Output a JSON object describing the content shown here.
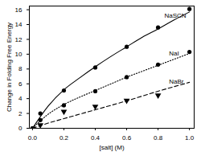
{
  "chart_data": {
    "type": "scatter",
    "xlabel": "[salt] (M)",
    "ylabel": "Change in Folding Free Energy",
    "xlim": [
      -0.02,
      1.03
    ],
    "ylim": [
      0,
      16.5
    ],
    "xticks": [
      {
        "value": 0,
        "label": "0.0"
      },
      0.2,
      0.4,
      0.6,
      0.8,
      {
        "value": 1,
        "label": "1.0"
      }
    ],
    "yticks": [
      0,
      2,
      4,
      6,
      8,
      10,
      12,
      14,
      16
    ],
    "grid": false,
    "series": [
      {
        "name": "NaSCN",
        "color": "#000000",
        "marker": "circle",
        "line_style": "solid",
        "x": [
          0,
          0.05,
          0.2,
          0.4,
          0.6,
          0.8,
          1.0
        ],
        "values": [
          0,
          2.0,
          5.1,
          8.2,
          11.0,
          13.6,
          16.1
        ],
        "fit_x": [
          0,
          0.1,
          0.2,
          0.3,
          0.4,
          0.5,
          0.6,
          0.7,
          0.8,
          0.9,
          1.0
        ],
        "fit_values": [
          0,
          3.0,
          5.2,
          6.8,
          8.3,
          9.7,
          11.0,
          12.3,
          13.4,
          14.6,
          15.7
        ]
      },
      {
        "name": "NaI",
        "color": "#000000",
        "marker": "circle",
        "line_style": "dotted",
        "x": [
          0,
          0.05,
          0.2,
          0.4,
          0.6,
          0.8,
          1.0
        ],
        "values": [
          0,
          1.1,
          3.1,
          5.0,
          6.9,
          8.6,
          10.3
        ],
        "fit_x": [
          0,
          0.1,
          0.2,
          0.3,
          0.4,
          0.5,
          0.6,
          0.7,
          0.8,
          0.9,
          1.0
        ],
        "fit_values": [
          0,
          1.9,
          3.2,
          4.2,
          5.1,
          6.0,
          6.9,
          7.7,
          8.5,
          9.3,
          10.1
        ]
      },
      {
        "name": "NaBr",
        "color": "#000000",
        "marker": "triangle-down",
        "line_style": "dashed",
        "x": [
          0.05,
          0.2,
          0.4,
          0.6,
          0.8
        ],
        "values": [
          0.4,
          2.2,
          2.9,
          3.7,
          4.4
        ],
        "fit_x": [
          0,
          0.1,
          0.2,
          0.4,
          0.6,
          0.8,
          1.0
        ],
        "fit_values": [
          0,
          0.7,
          1.3,
          2.5,
          3.7,
          5.0,
          6.2
        ]
      }
    ],
    "annotations": [
      {
        "text": "NaSCN",
        "x": 0.84,
        "y": 15.2
      },
      {
        "text": "NaI",
        "x": 0.87,
        "y": 10.1
      },
      {
        "text": "NaBr",
        "x": 0.87,
        "y": 6.3
      }
    ]
  }
}
